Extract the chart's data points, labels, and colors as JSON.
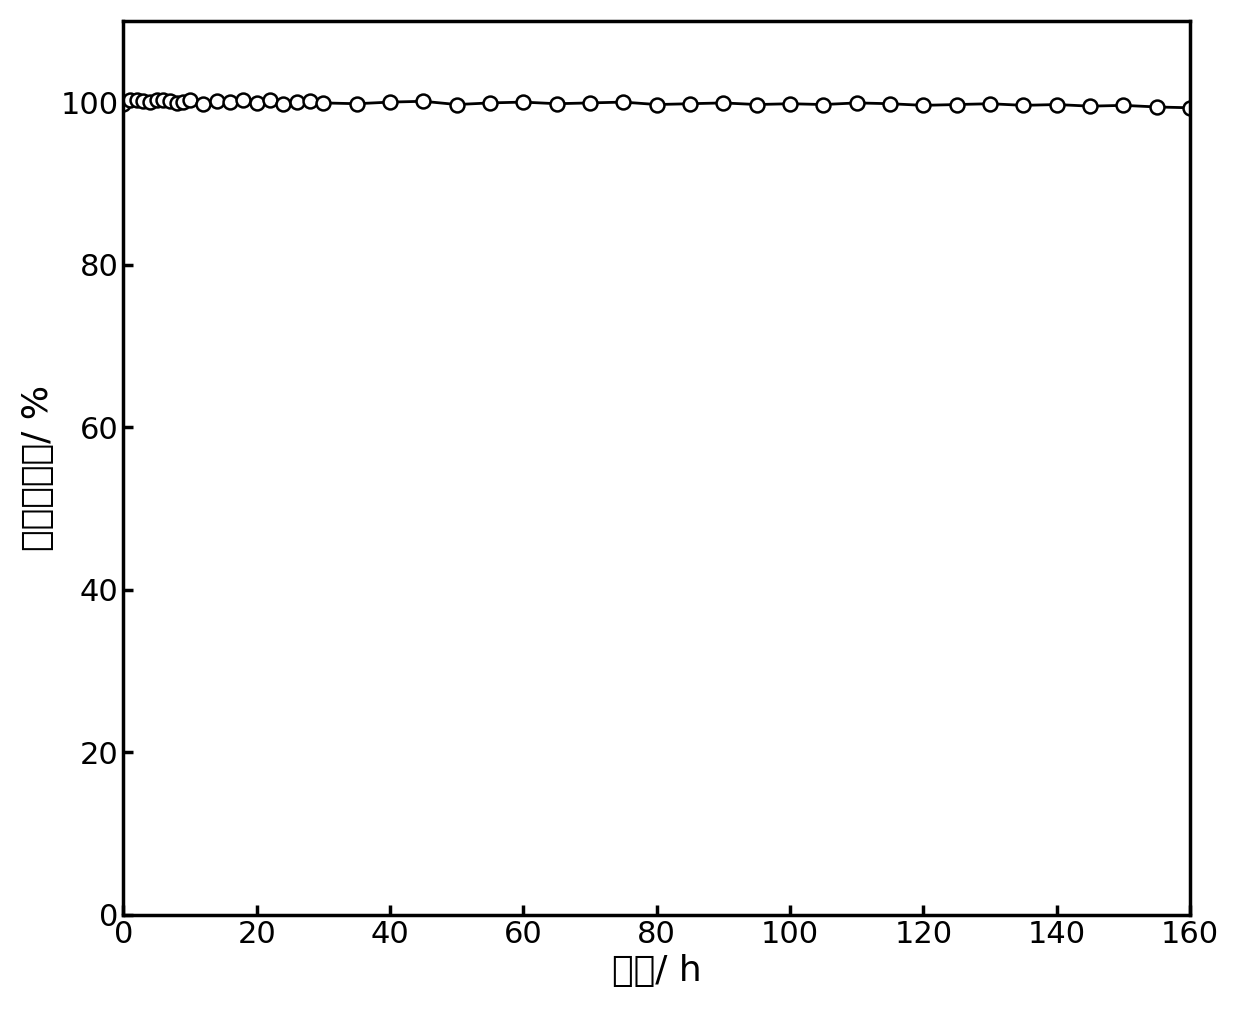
{
  "x": [
    0,
    1,
    2,
    3,
    4,
    5,
    6,
    7,
    8,
    9,
    10,
    12,
    14,
    16,
    18,
    20,
    22,
    24,
    26,
    28,
    30,
    35,
    40,
    45,
    50,
    55,
    60,
    65,
    70,
    75,
    80,
    85,
    90,
    95,
    100,
    105,
    110,
    115,
    120,
    125,
    130,
    135,
    140,
    145,
    150,
    155,
    160
  ],
  "y": [
    99.8,
    100.2,
    100.3,
    100.1,
    100.0,
    100.2,
    100.3,
    100.1,
    99.9,
    100.0,
    100.2,
    99.8,
    100.1,
    100.0,
    100.2,
    99.9,
    100.3,
    99.8,
    100.0,
    100.1,
    99.9,
    99.8,
    100.0,
    100.1,
    99.7,
    99.9,
    100.0,
    99.8,
    99.9,
    100.0,
    99.7,
    99.8,
    99.9,
    99.7,
    99.8,
    99.7,
    99.9,
    99.8,
    99.6,
    99.7,
    99.8,
    99.6,
    99.7,
    99.5,
    99.6,
    99.4,
    99.3
  ],
  "xlabel": "时间/ h",
  "ylabel": "甲醉转化率/ %",
  "xlim": [
    0,
    160
  ],
  "ylim": [
    0,
    110
  ],
  "xticks": [
    0,
    20,
    40,
    60,
    80,
    100,
    120,
    140,
    160
  ],
  "yticks": [
    0,
    20,
    40,
    60,
    80,
    100
  ],
  "line_color": "#000000",
  "marker": "o",
  "marker_size": 10,
  "marker_facecolor": "white",
  "marker_edgecolor": "#000000",
  "line_width": 2.0,
  "background_color": "#ffffff",
  "xlabel_fontsize": 26,
  "ylabel_fontsize": 26,
  "tick_fontsize": 22
}
